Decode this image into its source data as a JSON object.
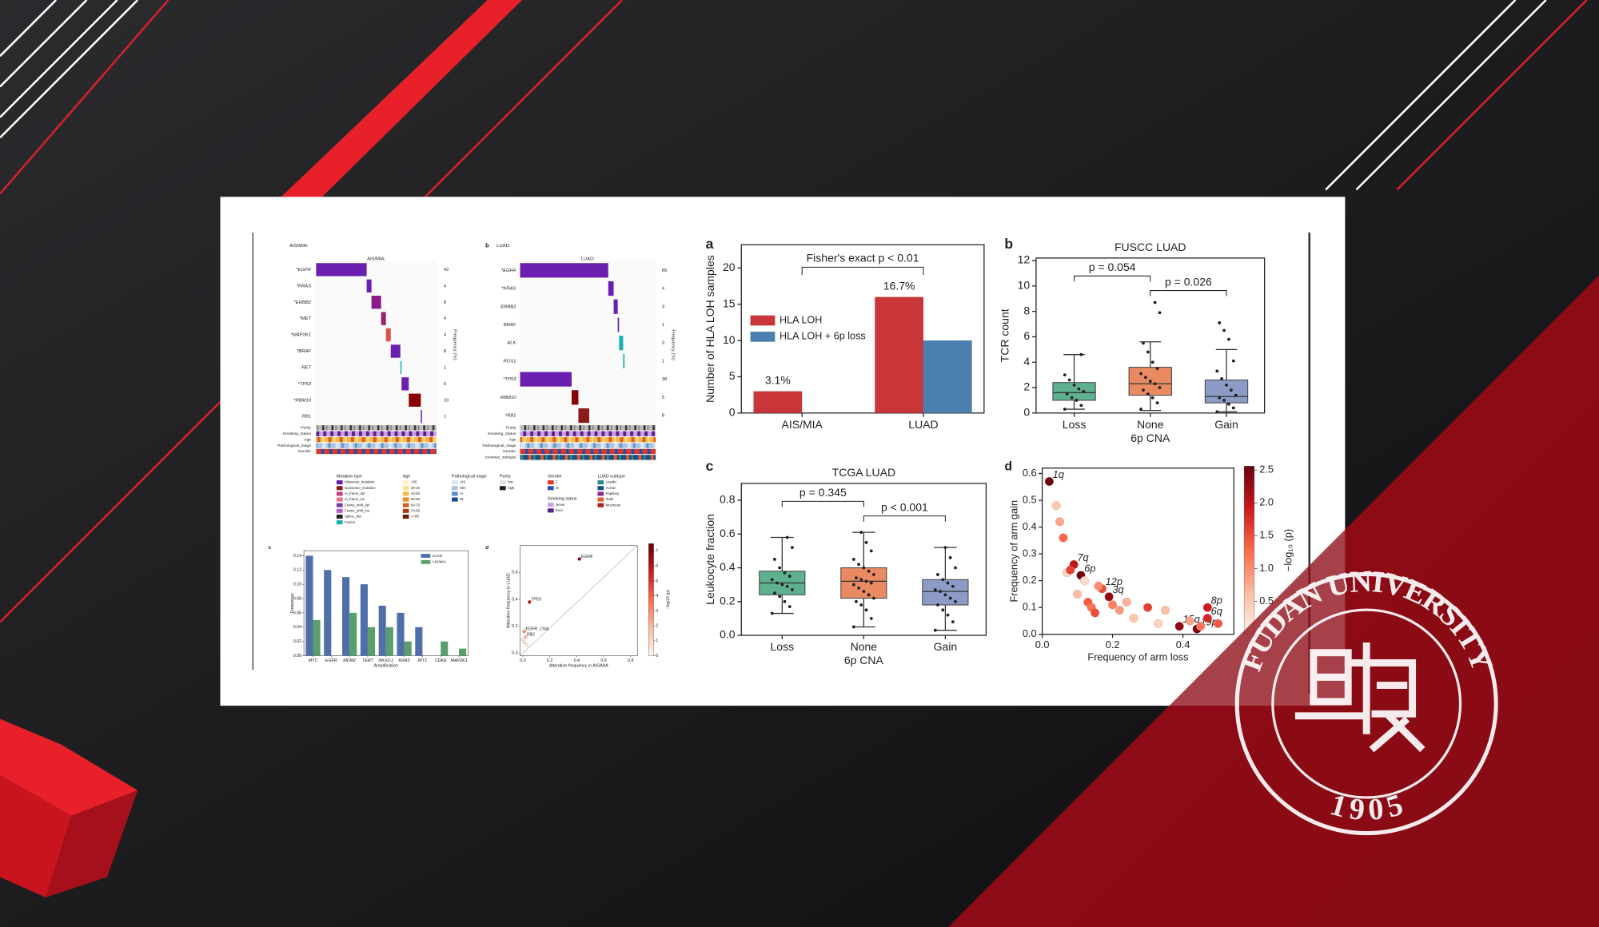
{
  "slide": {
    "logo": {
      "name": "FUDAN UNIVERSITY",
      "year": "1905"
    }
  },
  "oncoprint_legend": [
    {
      "title": "Mutation type",
      "items": [
        {
          "label": "Missense_mutation",
          "color": "#6a1fb0"
        },
        {
          "label": "Nonsense_mutation",
          "color": "#8b1a1a"
        },
        {
          "label": "In_frame_del",
          "color": "#c04080"
        },
        {
          "label": "In_frame_ins",
          "color": "#e07090"
        },
        {
          "label": "Frame_shift_del",
          "color": "#7a3c9e"
        },
        {
          "label": "Frame_shift_ins",
          "color": "#b05cc0"
        },
        {
          "label": "Splice_site",
          "color": "#222222"
        },
        {
          "label": "Fusion",
          "color": "#1ab0b0"
        }
      ]
    },
    {
      "title": "Age",
      "items": [
        {
          "label": "<30",
          "color": "#fff3c0"
        },
        {
          "label": "30-40",
          "color": "#fde08a"
        },
        {
          "label": "40-50",
          "color": "#f9b94a"
        },
        {
          "label": "50-60",
          "color": "#f08a24"
        },
        {
          "label": "60-70",
          "color": "#d9601a"
        },
        {
          "label": "70-80",
          "color": "#b03a10"
        },
        {
          "label": ">=80",
          "color": "#6b1a05"
        }
      ]
    },
    {
      "title": "Pathological stage",
      "items": [
        {
          "label": "AIS",
          "color": "#d8e4f0"
        },
        {
          "label": "MIA",
          "color": "#a8c4e0"
        },
        {
          "label": "IA",
          "color": "#5a90c8"
        },
        {
          "label": "IB",
          "color": "#1c4e8a"
        }
      ]
    },
    {
      "title": "Purity",
      "items": [
        {
          "label": "low",
          "color": "#e0e0e0"
        },
        {
          "label": "high",
          "color": "#202020"
        }
      ]
    },
    {
      "title": "Gender",
      "items": [
        {
          "label": "F",
          "color": "#d9382c"
        },
        {
          "label": "M",
          "color": "#2a4ea8"
        }
      ]
    },
    {
      "title": "Smoking status",
      "items": [
        {
          "label": "Never",
          "color": "#c8a0e0"
        },
        {
          "label": "Ever",
          "color": "#5a1f8a"
        }
      ]
    },
    {
      "title": "LUAD subtype",
      "items": [
        {
          "label": "Lepidic",
          "color": "#2a8a8a"
        },
        {
          "label": "Acinar",
          "color": "#1a4e80"
        },
        {
          "label": "Papillary",
          "color": "#8a2a8a"
        },
        {
          "label": "Solid",
          "color": "#e05a2a"
        },
        {
          "label": "Mucinous",
          "color": "#b02020"
        }
      ]
    }
  ],
  "chart_data": [
    {
      "type": "oncoprint",
      "title": "AIS/MIA:",
      "genes": [
        "*EGFR",
        "*KRAS",
        "*ERBB2",
        "*MET",
        "*MAP2K1",
        "*BRAF",
        "RET",
        "*TP53",
        "*RBM10",
        "RB1"
      ],
      "values": [
        42,
        4,
        8,
        4,
        4,
        8,
        1,
        6,
        10,
        1
      ],
      "colors": [
        "#6a1fb0",
        "#6a1fb0",
        "#8b1a8b",
        "#9b1f6a",
        "#d9534f",
        "#6a1fb0",
        "#1ab0b0",
        "#6a1fb0",
        "#8b0000",
        "#6a1fb0"
      ],
      "ylabel": "Frequency (%)",
      "tracks": [
        "Purity",
        "Smoking_status",
        "Age",
        "Pathological_stage",
        "Gender"
      ]
    },
    {
      "type": "oncoprint",
      "label": "b",
      "title": "LUAD:",
      "genes": [
        "*EGFR",
        "*KRAS",
        "ERBB2",
        "BRAF",
        "ALK",
        "ROS1",
        "*TP53",
        "RBM10",
        "*RB1"
      ],
      "values": [
        65,
        4,
        3,
        1,
        3,
        1,
        38,
        5,
        8
      ],
      "colors": [
        "#6a1fb0",
        "#6a1fb0",
        "#6a1fb0",
        "#6a1fb0",
        "#1ab0b0",
        "#1ab0b0",
        "#6a1fb0",
        "#8b0000",
        "#8b1a1a"
      ],
      "ylabel": "Frequency (%)",
      "tracks": [
        "Purity",
        "Smoking_status",
        "Age",
        "Pathological_stage",
        "Gender",
        "Invasive_subtype"
      ]
    },
    {
      "type": "bar",
      "label": "c",
      "xlabel": "Amplification",
      "ylabel": "Frequency",
      "categories": [
        "MYC",
        "EGFR",
        "MDM2",
        "TERT",
        "NKX2-1",
        "KRAS",
        "RIT1",
        "CDKE",
        "MAP2K1"
      ],
      "series": [
        {
          "name": "LUAD",
          "color": "#4f6fa8",
          "values": [
            0.14,
            0.12,
            0.11,
            0.1,
            0.07,
            0.06,
            0.04,
            0,
            0
          ]
        },
        {
          "name": "AIS/MIA",
          "color": "#5a9e6e",
          "values": [
            0.05,
            0,
            0.06,
            0.04,
            0.04,
            0.02,
            0,
            0.02,
            0.01
          ]
        }
      ],
      "ylim": [
        0,
        0.147
      ],
      "yticks": [
        {
          "value": 0,
          "label": "0.00"
        },
        0.02,
        0.04,
        0.06,
        0.08,
        {
          "value": 0.1,
          "label": "0.10"
        },
        0.12,
        0.14
      ],
      "legend": "upper right"
    },
    {
      "type": "scatter",
      "label": "d",
      "xlabel": "Alteration frequency in AIS/MIA",
      "ylabel": "Alteration frequency in LUAD",
      "x": [
        0.42,
        0.05,
        0.01,
        0.02,
        0.0,
        0.01,
        0.03
      ],
      "y": [
        0.7,
        0.38,
        0.16,
        0.12,
        0.1,
        0.08,
        0.06
      ],
      "color_values": [
        7,
        6,
        3,
        2,
        0.5,
        0.5,
        0.5
      ],
      "point_labels": [
        "EGFR",
        "TP53",
        "EGFR_CNA",
        "RB1",
        null,
        null,
        null
      ],
      "xlim": [
        -0.02,
        0.85
      ],
      "ylim": [
        -0.02,
        0.8
      ],
      "xticks": [
        {
          "value": 0,
          "label": "0.0"
        },
        0.2,
        0.4,
        0.6,
        0.8
      ],
      "yticks": [
        {
          "value": 0,
          "label": "0.0"
        },
        0.2,
        0.4,
        0.6
      ],
      "clim": [
        0,
        7.5
      ],
      "cticks": [
        0,
        1,
        2,
        3,
        4,
        5,
        6,
        7
      ],
      "clabel": "−log10 (p)",
      "diagonal": true
    },
    {
      "type": "bar",
      "label": "a",
      "ylabel": "Number of HLA LOH samples",
      "categories": [
        "AIS/MIA",
        "LUAD"
      ],
      "series": [
        {
          "name": "HLA LOH",
          "color": "#c8363a",
          "values": [
            3,
            16
          ]
        },
        {
          "name": "HLA LOH + 6p loss",
          "color": "#4a7fb0",
          "values": [
            0,
            10
          ]
        }
      ],
      "bar_labels": [
        "3.1%",
        "16.7%"
      ],
      "annotations": [
        "Fisher's exact p < 0.01"
      ],
      "ylim": [
        0,
        23.2
      ],
      "yticks": [
        0,
        5,
        10,
        15,
        20
      ],
      "legend": "center left"
    },
    {
      "type": "box",
      "label": "b",
      "title": "FUSCC LUAD",
      "xlabel": "6p CNA",
      "ylabel": "TCR count",
      "categories": [
        "Loss",
        "None",
        "Gain"
      ],
      "colors": [
        "#5fb08f",
        "#e98a62",
        "#8d9cc6"
      ],
      "whisker_low": [
        0.3,
        0.2,
        0.1
      ],
      "q1": [
        1.0,
        1.4,
        0.8
      ],
      "median": [
        1.6,
        2.3,
        1.3
      ],
      "q3": [
        2.4,
        3.6,
        2.6
      ],
      "whisker_high": [
        4.6,
        5.6,
        5.0
      ],
      "points": [
        [
          0.3,
          0.6,
          1.0,
          1.2,
          1.5,
          1.7,
          1.9,
          2.2,
          2.6,
          3.0,
          4.6
        ],
        [
          0.3,
          0.8,
          1.2,
          1.5,
          1.8,
          2.0,
          2.3,
          2.5,
          2.8,
          3.1,
          3.5,
          4.0,
          4.8,
          5.5,
          7.9,
          8.7
        ],
        [
          0.1,
          0.4,
          0.7,
          1.0,
          1.2,
          1.4,
          1.8,
          2.2,
          2.7,
          3.3,
          4.1,
          5.8,
          6.5,
          7.1
        ]
      ],
      "annotations": [
        "p = 0.054",
        "p = 0.026"
      ],
      "ylim": [
        0,
        12.2
      ],
      "yticks": [
        0,
        2,
        4,
        6,
        8,
        10,
        12
      ]
    },
    {
      "type": "box",
      "label": "c",
      "title": "TCGA LUAD",
      "xlabel": "6p CNA",
      "ylabel": "Leukocyte fraction",
      "categories": [
        "Loss",
        "None",
        "Gain"
      ],
      "colors": [
        "#5fb08f",
        "#e98a62",
        "#8d9cc6"
      ],
      "whisker_low": [
        0.13,
        0.05,
        0.03
      ],
      "q1": [
        0.24,
        0.22,
        0.18
      ],
      "median": [
        0.31,
        0.32,
        0.26
      ],
      "q3": [
        0.38,
        0.4,
        0.33
      ],
      "whisker_high": [
        0.58,
        0.61,
        0.52
      ],
      "points": [
        [
          0.13,
          0.17,
          0.2,
          0.23,
          0.25,
          0.27,
          0.29,
          0.3,
          0.31,
          0.33,
          0.35,
          0.37,
          0.4,
          0.45,
          0.52,
          0.58
        ],
        [
          0.05,
          0.1,
          0.15,
          0.18,
          0.2,
          0.22,
          0.24,
          0.26,
          0.28,
          0.3,
          0.31,
          0.32,
          0.33,
          0.34,
          0.36,
          0.38,
          0.4,
          0.42,
          0.45,
          0.5,
          0.55,
          0.61
        ],
        [
          0.03,
          0.08,
          0.12,
          0.15,
          0.18,
          0.2,
          0.22,
          0.24,
          0.26,
          0.27,
          0.29,
          0.31,
          0.33,
          0.36,
          0.4,
          0.46,
          0.52
        ]
      ],
      "annotations": [
        "p = 0.345",
        "p < 0.001"
      ],
      "ylim": [
        0,
        0.9
      ],
      "yticks": [
        {
          "value": 0,
          "label": "0.0"
        },
        0.2,
        0.4,
        0.6,
        0.8
      ]
    },
    {
      "type": "scatter",
      "label": "d",
      "xlabel": "Frequency of arm loss",
      "ylabel": "Frequency of arm gain",
      "x": [
        0.02,
        0.09,
        0.11,
        0.17,
        0.19,
        0.39,
        0.44,
        0.47,
        0.47,
        0.04,
        0.05,
        0.06,
        0.07,
        0.08,
        0.1,
        0.12,
        0.13,
        0.14,
        0.15,
        0.16,
        0.2,
        0.22,
        0.24,
        0.26,
        0.3,
        0.33,
        0.35,
        0.42,
        0.45,
        0.5
      ],
      "y": [
        0.57,
        0.26,
        0.22,
        0.17,
        0.14,
        0.03,
        0.02,
        0.1,
        0.06,
        0.48,
        0.42,
        0.36,
        0.23,
        0.24,
        0.15,
        0.2,
        0.12,
        0.1,
        0.08,
        0.18,
        0.11,
        0.09,
        0.12,
        0.06,
        0.1,
        0.04,
        0.09,
        0.05,
        0.03,
        0.04
      ],
      "color_values": [
        2.5,
        2.0,
        2.5,
        1.5,
        2.3,
        2.3,
        2.5,
        1.9,
        1.8,
        0.5,
        0.8,
        1.3,
        0.4,
        1.6,
        0.6,
        0.3,
        1.4,
        1.2,
        1.5,
        1.0,
        1.1,
        0.9,
        0.7,
        0.5,
        1.6,
        0.4,
        0.6,
        0.8,
        1.2,
        1.4
      ],
      "point_labels": [
        "1q",
        "7q",
        "6p",
        "12p",
        "3q",
        "15q",
        "19p",
        "8p",
        "6q",
        null,
        null,
        null,
        null,
        null,
        null,
        null,
        null,
        null,
        null,
        null,
        null,
        null,
        null,
        null,
        null,
        null,
        null,
        null,
        null,
        null
      ],
      "xlim": [
        0,
        0.545
      ],
      "ylim": [
        0,
        0.62
      ],
      "xticks": [
        {
          "value": 0,
          "label": "0.0"
        },
        0.2,
        0.4
      ],
      "yticks": [
        {
          "value": 0,
          "label": "0.0"
        },
        0.1,
        0.2,
        0.3,
        0.4,
        0.5,
        0.6
      ],
      "clim": [
        0,
        2.56
      ],
      "cticks": [
        0.5,
        {
          "value": 1,
          "label": "1.0"
        },
        1.5,
        {
          "value": 2,
          "label": "2.0"
        },
        2.5
      ],
      "clabel": "−log₁₀ (p)"
    }
  ]
}
